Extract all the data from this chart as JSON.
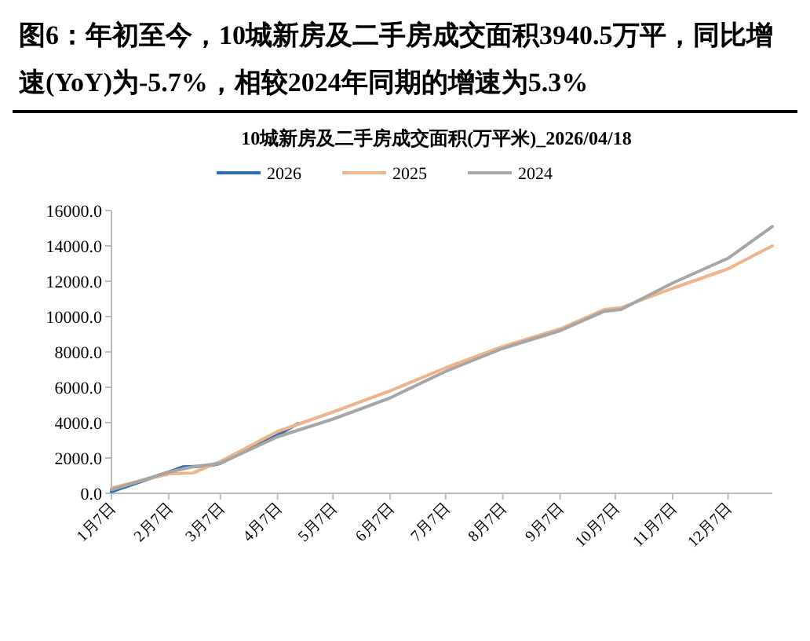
{
  "chart_data": {
    "type": "line",
    "title": "图6：年初至今，10城新房及二手房成交面积3940.5万平，同比增速(YoY)为-5.7%，相较2024年同期的增速为5.3%",
    "subtitle": "10城新房及二手房成交面积(万平米)_2026/04/18",
    "x": [
      "--01-07",
      "--02-07",
      "--02-15",
      "--03-01",
      "--03-07",
      "--04-07",
      "--04-18"
    ],
    "series": [
      {
        "name": "2026",
        "color": "#2e6bb5",
        "values": [
          100,
          1200,
          1500,
          1550,
          1700,
          3300,
          3940.5
        ]
      },
      {
        "name": "2025",
        "color": "#f0b48a",
        "x": [
          "--01-07",
          "--02-07",
          "--02-20",
          "--03-07",
          "--04-07",
          "--05-07",
          "--06-07",
          "--07-07",
          "--08-07",
          "--09-07",
          "--10-01",
          "--10-10",
          "--11-07",
          "--12-07",
          "--12-31"
        ],
        "values": [
          300,
          1100,
          1150,
          1800,
          3500,
          4600,
          5800,
          7100,
          8300,
          9300,
          10400,
          10500,
          11600,
          12700,
          14000
        ]
      },
      {
        "name": "2024",
        "color": "#a6a6a6",
        "x": [
          "--01-07",
          "--02-07",
          "--02-20",
          "--03-07",
          "--04-07",
          "--05-07",
          "--06-07",
          "--07-07",
          "--08-07",
          "--09-07",
          "--10-01",
          "--10-10",
          "--11-07",
          "--12-07",
          "--12-31"
        ],
        "values": [
          200,
          1200,
          1500,
          1700,
          3200,
          4200,
          5400,
          6900,
          8200,
          9200,
          10300,
          10400,
          11900,
          13300,
          15100
        ]
      }
    ],
    "xlim": [
      "--01-07",
      "--12-31"
    ],
    "xticks": [
      {
        "value": "--01-07",
        "label": "1月7日"
      },
      {
        "value": "--02-07",
        "label": "2月7日"
      },
      {
        "value": "--03-07",
        "label": "3月7日"
      },
      {
        "value": "--04-07",
        "label": "4月7日"
      },
      {
        "value": "--05-07",
        "label": "5月7日"
      },
      {
        "value": "--06-07",
        "label": "6月7日"
      },
      {
        "value": "--07-07",
        "label": "7月7日"
      },
      {
        "value": "--08-07",
        "label": "8月7日"
      },
      {
        "value": "--09-07",
        "label": "9月7日"
      },
      {
        "value": "--10-07",
        "label": "10月7日"
      },
      {
        "value": "--11-07",
        "label": "11月7日"
      },
      {
        "value": "--12-07",
        "label": "12月7日"
      }
    ],
    "ylim": [
      0,
      16000
    ],
    "yticks": [
      {
        "value": 0,
        "label": "0.0"
      },
      {
        "value": 2000,
        "label": "2000.0"
      },
      {
        "value": 4000,
        "label": "4000.0"
      },
      {
        "value": 6000,
        "label": "6000.0"
      },
      {
        "value": 8000,
        "label": "8000.0"
      },
      {
        "value": 10000,
        "label": "10000.0"
      },
      {
        "value": 12000,
        "label": "12000.0"
      },
      {
        "value": 14000,
        "label": "14000.0"
      },
      {
        "value": 16000,
        "label": "16000.0"
      }
    ],
    "grid": false,
    "legend": "top",
    "marker": "none",
    "line_style": "solid"
  }
}
